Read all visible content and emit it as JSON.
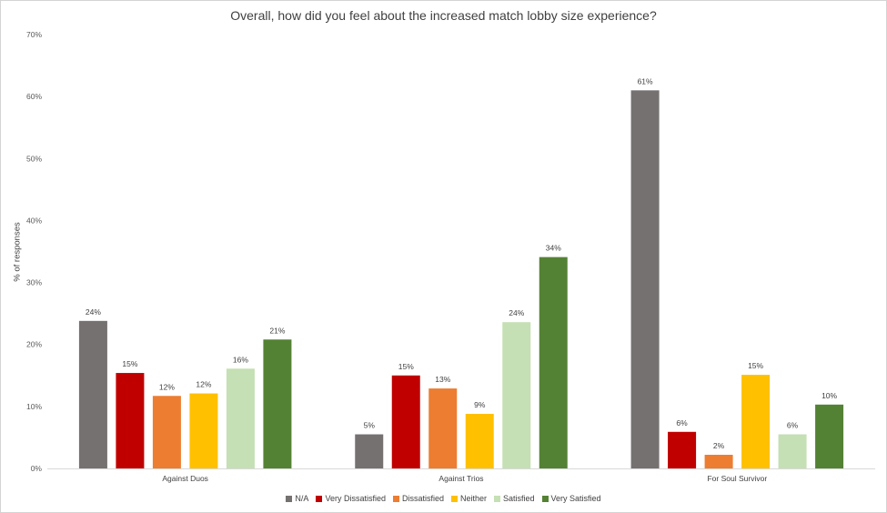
{
  "chart_data": {
    "type": "bar",
    "title": "Overall, how did you feel about the increased match lobby size experience?",
    "ylabel": "% of responses",
    "xlabel": "",
    "ylim": [
      0,
      70
    ],
    "yticks": [
      "0%",
      "10%",
      "20%",
      "30%",
      "40%",
      "50%",
      "60%",
      "70%"
    ],
    "grid": false,
    "legend_position": "bottom",
    "categories": [
      "Against Duos",
      "Against Trios",
      "For Soul Survivor"
    ],
    "series": [
      {
        "name": "N/A",
        "color": "#757171",
        "values": [
          23.8,
          5.5,
          61.0
        ],
        "labels": [
          "24%",
          "5%",
          "61%"
        ]
      },
      {
        "name": "Very Dissatisfied",
        "color": "#c00000",
        "values": [
          15.4,
          15.0,
          5.9
        ],
        "labels": [
          "15%",
          "15%",
          "6%"
        ]
      },
      {
        "name": "Dissatisfied",
        "color": "#ed7d31",
        "values": [
          11.7,
          12.9,
          2.2
        ],
        "labels": [
          "12%",
          "13%",
          "2%"
        ]
      },
      {
        "name": "Neither",
        "color": "#ffc000",
        "values": [
          12.1,
          8.8,
          15.1
        ],
        "labels": [
          "12%",
          "9%",
          "15%"
        ]
      },
      {
        "name": "Satisfied",
        "color": "#c5e0b4",
        "values": [
          16.1,
          23.6,
          5.5
        ],
        "labels": [
          "16%",
          "24%",
          "6%"
        ]
      },
      {
        "name": "Very Satisfied",
        "color": "#548235",
        "values": [
          20.8,
          34.1,
          10.3
        ],
        "labels": [
          "21%",
          "34%",
          "10%"
        ]
      }
    ]
  }
}
